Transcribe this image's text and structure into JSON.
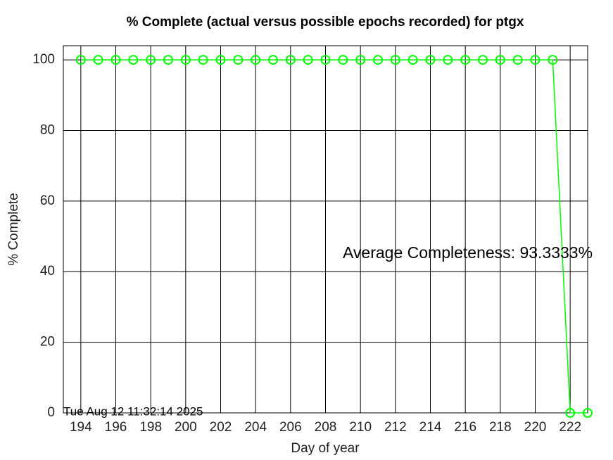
{
  "chart_data": {
    "type": "line",
    "title": "% Complete (actual versus possible epochs recorded) for ptgx",
    "x_label": "Day of year",
    "y_label": "% Complete",
    "x": [
      194,
      195,
      196,
      197,
      198,
      199,
      200,
      201,
      202,
      203,
      204,
      205,
      206,
      207,
      208,
      209,
      210,
      211,
      212,
      213,
      214,
      215,
      216,
      217,
      218,
      219,
      220,
      221,
      222,
      223
    ],
    "series": [
      {
        "color": "#00ff00",
        "values": [
          100,
          100,
          100,
          100,
          100,
          100,
          100,
          100,
          100,
          100,
          100,
          100,
          100,
          100,
          100,
          100,
          100,
          100,
          100,
          100,
          100,
          100,
          100,
          100,
          100,
          100,
          100,
          100,
          0,
          0
        ]
      }
    ],
    "xlim": [
      193,
      223
    ],
    "ylim": [
      0,
      104
    ],
    "xticks": [
      194,
      196,
      198,
      200,
      202,
      204,
      206,
      208,
      210,
      212,
      214,
      216,
      218,
      220,
      222
    ],
    "yticks": [
      0,
      20,
      40,
      60,
      80,
      100
    ],
    "grid": true,
    "annotations": [
      "Average Completeness: 93.3333%",
      "Tue Aug 12 11:32:14 2025"
    ]
  }
}
